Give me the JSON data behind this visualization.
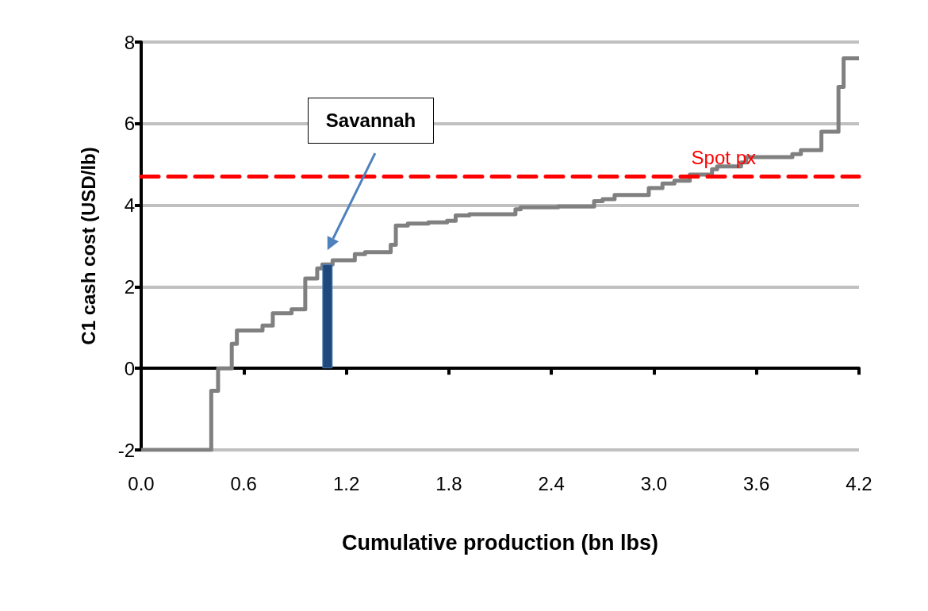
{
  "chart_data": {
    "type": "step",
    "xlabel": "Cumulative production (bn lbs)",
    "ylabel": "C1 cash cost (USD/lb)",
    "xlim": [
      0,
      4.2
    ],
    "xticks": [
      {
        "value": 0,
        "label": "0.0"
      },
      0.6,
      1.2,
      1.8,
      2.4,
      {
        "value": 3,
        "label": "3.0"
      },
      3.6,
      4.2
    ],
    "ylim": [
      -2,
      8
    ],
    "yticks": [
      -2,
      0,
      2,
      4,
      6,
      8
    ],
    "grid": "y",
    "marker": "none",
    "line_style": "solid",
    "series": [
      {
        "color": "#808080",
        "x": [
          0,
          0.41,
          0.45,
          0.53,
          0.56,
          0.71,
          0.77,
          0.88,
          0.96,
          1.03,
          1.06,
          1.12,
          1.25,
          1.31,
          1.46,
          1.49,
          1.56,
          1.68,
          1.79,
          1.84,
          1.92,
          2.19,
          2.22,
          2.44,
          2.65,
          2.7,
          2.77,
          2.97,
          3.05,
          3.12,
          3.21,
          3.34,
          3.37,
          3.51,
          3.54,
          3.81,
          3.86,
          3.98,
          4.08,
          4.11,
          4.2
        ],
        "values": [
          -2,
          -0.55,
          0,
          0.6,
          0.93,
          1.05,
          1.35,
          1.45,
          2.2,
          2.45,
          2.55,
          2.65,
          2.8,
          2.85,
          3.03,
          3.5,
          3.55,
          3.58,
          3.62,
          3.75,
          3.78,
          3.9,
          3.95,
          3.97,
          4.1,
          4.15,
          4.25,
          4.42,
          4.53,
          4.6,
          4.75,
          4.88,
          4.95,
          5.05,
          5.18,
          5.25,
          5.35,
          5.8,
          6.9,
          7.6,
          7.6
        ]
      },
      {
        "type": "bar",
        "color": "#1f497d",
        "x": [
          1.09
        ],
        "values": [
          2.55
        ]
      }
    ],
    "ref_lines": [
      {
        "axis": "y",
        "value": 4.7,
        "label": "Spot px",
        "color": "#ff0000",
        "line_style": "dashed"
      }
    ],
    "annotations": [
      "Savannah"
    ]
  }
}
